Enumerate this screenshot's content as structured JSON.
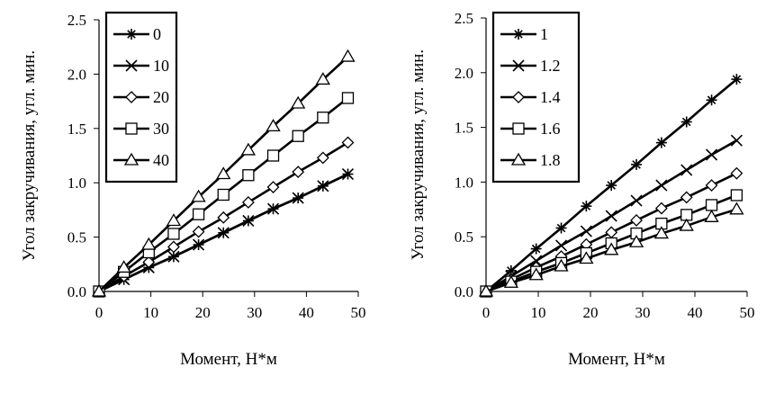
{
  "chart_data": [
    {
      "type": "line",
      "title": "",
      "xlabel": "Момент, Н*м",
      "ylabel": "Угол закручивания, угл. мин.",
      "xlim": [
        0,
        50
      ],
      "ylim": [
        0,
        2.5
      ],
      "xticks": [
        "0",
        "10",
        "20",
        "30",
        "40",
        "50"
      ],
      "yticks": [
        "0.0",
        "0.5",
        "1.0",
        "1.5",
        "2.0",
        "2.5"
      ],
      "grid": false,
      "legend": "top-left",
      "x": [
        0,
        4.8,
        9.6,
        14.4,
        19.2,
        24,
        28.8,
        33.6,
        38.4,
        43.2,
        48
      ],
      "series": [
        {
          "name": "0",
          "marker": "asterisk",
          "values": [
            0,
            0.11,
            0.22,
            0.32,
            0.43,
            0.54,
            0.65,
            0.76,
            0.86,
            0.97,
            1.08
          ]
        },
        {
          "name": "10",
          "marker": "cross",
          "values": [
            0,
            0.11,
            0.22,
            0.32,
            0.43,
            0.54,
            0.65,
            0.76,
            0.86,
            0.97,
            1.08
          ]
        },
        {
          "name": "20",
          "marker": "diamond",
          "values": [
            0,
            0.14,
            0.27,
            0.41,
            0.55,
            0.68,
            0.82,
            0.96,
            1.1,
            1.23,
            1.37
          ]
        },
        {
          "name": "30",
          "marker": "square",
          "values": [
            0,
            0.18,
            0.36,
            0.53,
            0.71,
            0.89,
            1.07,
            1.25,
            1.43,
            1.6,
            1.78
          ]
        },
        {
          "name": "40",
          "marker": "triangle",
          "values": [
            0,
            0.22,
            0.43,
            0.65,
            0.87,
            1.08,
            1.3,
            1.52,
            1.73,
            1.95,
            2.16
          ]
        }
      ]
    },
    {
      "type": "line",
      "title": "",
      "xlabel": "Момент, Н*м",
      "ylabel": "Угол закручивания, угл. мин.",
      "xlim": [
        0,
        50
      ],
      "ylim": [
        0,
        2.5
      ],
      "xticks": [
        "0",
        "10",
        "20",
        "30",
        "40",
        "50"
      ],
      "yticks": [
        "0.0",
        "0.5",
        "1.0",
        "1.5",
        "2.0",
        "2.5"
      ],
      "grid": false,
      "legend": "top-left",
      "x": [
        0,
        4.8,
        9.6,
        14.4,
        19.2,
        24,
        28.8,
        33.6,
        38.4,
        43.2,
        48
      ],
      "series": [
        {
          "name": "1",
          "marker": "asterisk",
          "values": [
            0,
            0.19,
            0.39,
            0.58,
            0.78,
            0.97,
            1.16,
            1.36,
            1.55,
            1.75,
            1.94
          ]
        },
        {
          "name": "1.2",
          "marker": "cross",
          "values": [
            0,
            0.14,
            0.28,
            0.42,
            0.55,
            0.69,
            0.83,
            0.97,
            1.11,
            1.25,
            1.38
          ]
        },
        {
          "name": "1.4",
          "marker": "diamond",
          "values": [
            0,
            0.11,
            0.22,
            0.32,
            0.43,
            0.54,
            0.65,
            0.76,
            0.86,
            0.97,
            1.08
          ]
        },
        {
          "name": "1.6",
          "marker": "square",
          "values": [
            0,
            0.09,
            0.18,
            0.26,
            0.35,
            0.44,
            0.53,
            0.62,
            0.7,
            0.79,
            0.88
          ]
        },
        {
          "name": "1.8",
          "marker": "triangle",
          "values": [
            0,
            0.08,
            0.15,
            0.23,
            0.3,
            0.38,
            0.45,
            0.53,
            0.6,
            0.68,
            0.75
          ]
        }
      ]
    }
  ]
}
